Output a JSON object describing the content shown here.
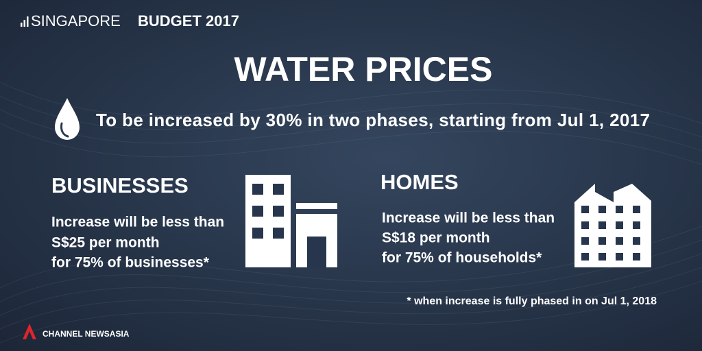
{
  "header": {
    "brand": "SINGAPORE",
    "edition": "BUDGET 2017"
  },
  "title": "WATER PRICES",
  "subtitle": "To be increased by 30% in two phases, starting from Jul 1, 2017",
  "panels": [
    {
      "heading": "BUSINESSES",
      "lines": [
        "Increase will be less than",
        "S$25 per month",
        "for 75% of businesses*"
      ]
    },
    {
      "heading": "HOMES",
      "lines": [
        "Increase will be less than",
        "S$18 per month",
        "for 75% of households*"
      ]
    }
  ],
  "footnote": "* when increase is fully phased in on Jul 1, 2018",
  "logo": "CHANNEL NEWSASIA"
}
